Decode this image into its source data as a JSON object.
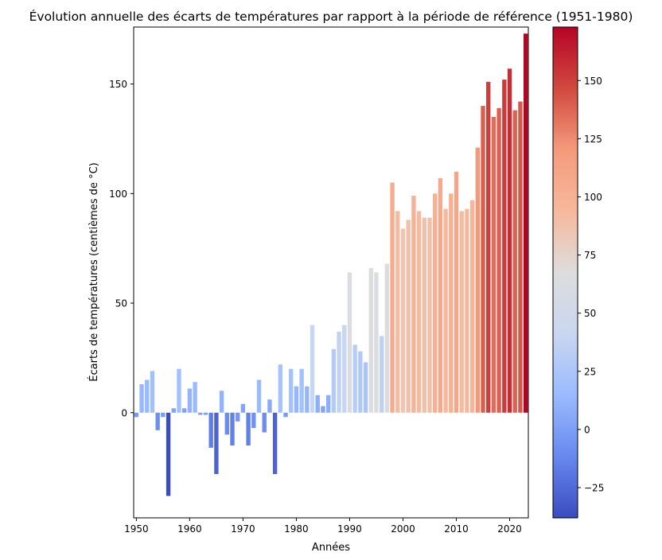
{
  "chart_data": {
    "type": "bar",
    "title": "Évolution annuelle des écarts de températures par rapport à la période de référence (1951-1980)",
    "xlabel": "Années",
    "ylabel": "Écarts de températures (centièmes de °C)",
    "xlim": [
      1950,
      2023
    ],
    "ylim": [
      -48,
      176
    ],
    "xticks": [
      1950,
      1960,
      1970,
      1980,
      1990,
      2000,
      2010,
      2020
    ],
    "yticks": [
      0,
      50,
      100,
      150
    ],
    "colorbar": {
      "colormap": "coolwarm",
      "range": [
        -38,
        173
      ],
      "ticks": [
        -25,
        0,
        25,
        50,
        75,
        100,
        125,
        150
      ],
      "color_stops": [
        "#3b4cc0",
        "#6788ee",
        "#9abbff",
        "#c9d7f0",
        "#dddddd",
        "#f7b89c",
        "#f49a7b",
        "#d1493f",
        "#b40426"
      ]
    },
    "x": [
      1950,
      1951,
      1952,
      1953,
      1954,
      1955,
      1956,
      1957,
      1958,
      1959,
      1960,
      1961,
      1962,
      1963,
      1964,
      1965,
      1966,
      1967,
      1968,
      1969,
      1970,
      1971,
      1972,
      1973,
      1974,
      1975,
      1976,
      1977,
      1978,
      1979,
      1980,
      1981,
      1982,
      1983,
      1984,
      1985,
      1986,
      1987,
      1988,
      1989,
      1990,
      1991,
      1992,
      1993,
      1994,
      1995,
      1996,
      1997,
      1998,
      1999,
      2000,
      2001,
      2002,
      2003,
      2004,
      2005,
      2006,
      2007,
      2008,
      2009,
      2010,
      2011,
      2012,
      2013,
      2014,
      2015,
      2016,
      2017,
      2018,
      2019,
      2020,
      2021,
      2022,
      2023
    ],
    "values": [
      -2,
      13,
      15,
      19,
      -8,
      -2,
      -38,
      2,
      20,
      2,
      11,
      14,
      -1,
      -1,
      -16,
      -28,
      10,
      -10,
      -15,
      -4,
      4,
      -15,
      -7,
      15,
      -9,
      6,
      -28,
      22,
      -2,
      20,
      12,
      20,
      12,
      40,
      8,
      3,
      8,
      29,
      37,
      40,
      64,
      31,
      28,
      23,
      66,
      64,
      35,
      68,
      105,
      92,
      84,
      88,
      99,
      92,
      89,
      89,
      100,
      107,
      93,
      100,
      110,
      92,
      93,
      97,
      121,
      140,
      151,
      135,
      139,
      152,
      157,
      138,
      142,
      173
    ]
  }
}
